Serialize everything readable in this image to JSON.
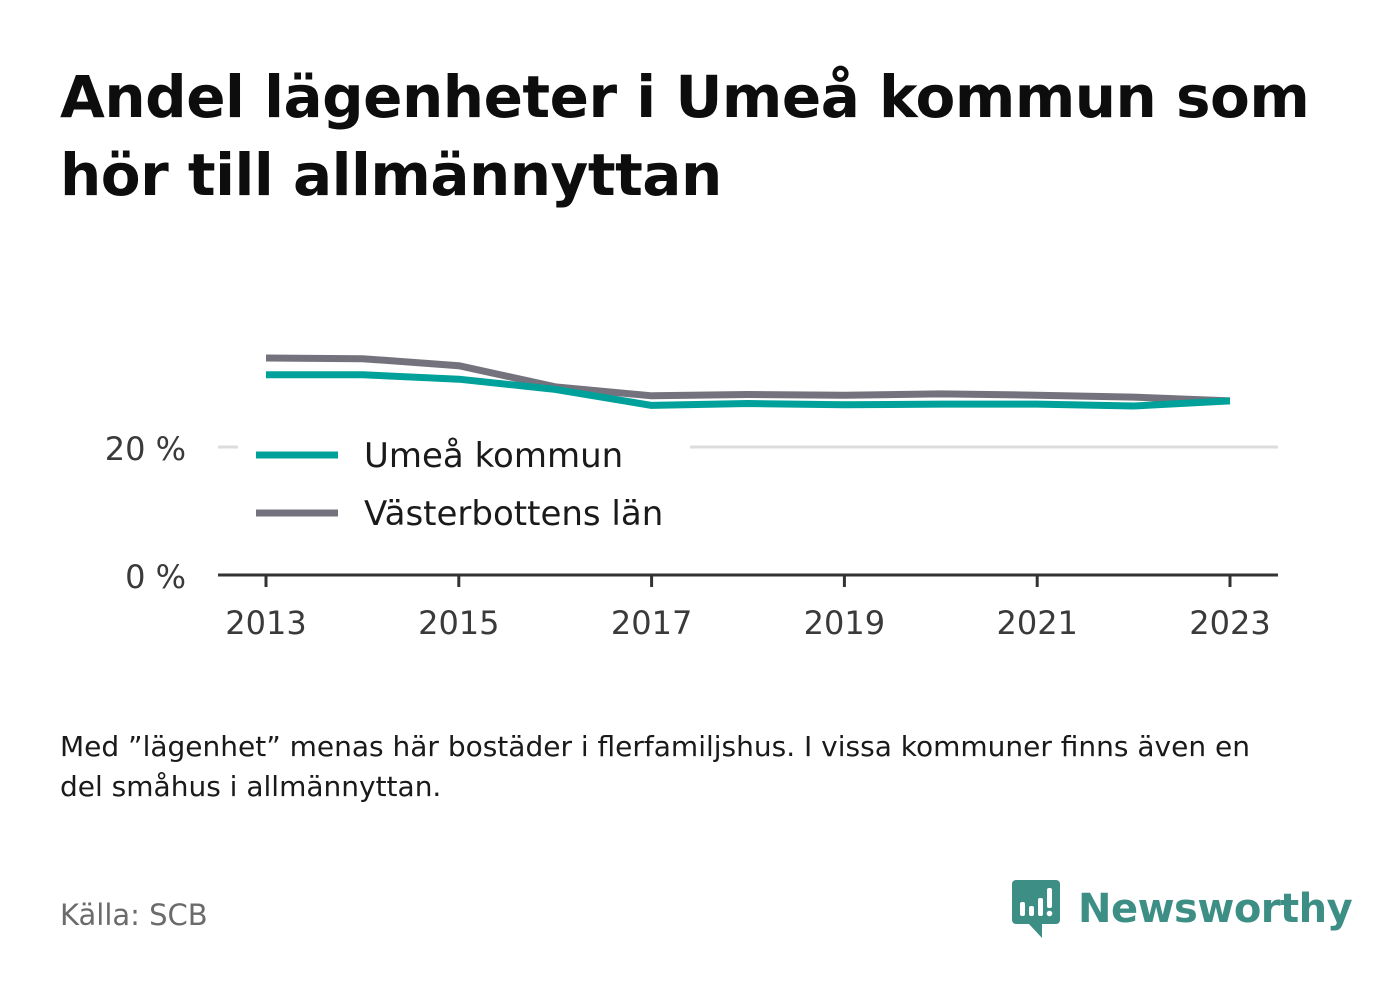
{
  "title": "Andel lägenheter i Umeå kommun som hör till allmännyttan",
  "note": "Med ”lägenhet” menas här bostäder i flerfamiljshus. I vissa kommuner finns även en del småhus i allmännyttan.",
  "source": "Källa: SCB",
  "brand": {
    "name": "Newsworthy",
    "icon": "newsworthy-logo-icon",
    "color": "#3d8f86"
  },
  "chart_data": {
    "type": "line",
    "title": "Andel lägenheter i Umeå kommun som hör till allmännyttan",
    "xlabel": "",
    "ylabel": "",
    "x": [
      2013,
      2014,
      2015,
      2016,
      2017,
      2018,
      2019,
      2020,
      2021,
      2022,
      2023
    ],
    "x_ticks": [
      "2013",
      "2015",
      "2017",
      "2019",
      "2021",
      "2023"
    ],
    "y_ticks": [
      {
        "value": 0,
        "label": "0 %"
      },
      {
        "value": 20,
        "label": "20 %"
      }
    ],
    "ylim": [
      0,
      36
    ],
    "grid": true,
    "legend_position": "bottom-left",
    "series": [
      {
        "name": "Umeå kommun",
        "color": "#00a19a",
        "values": [
          31.3,
          31.3,
          30.6,
          29.0,
          26.5,
          26.8,
          26.6,
          26.7,
          26.7,
          26.4,
          27.2
        ]
      },
      {
        "name": "Västerbottens län",
        "color": "#74737d",
        "values": [
          33.9,
          33.8,
          32.7,
          29.4,
          28.0,
          28.2,
          28.1,
          28.3,
          28.1,
          27.8,
          27.2
        ]
      }
    ]
  }
}
